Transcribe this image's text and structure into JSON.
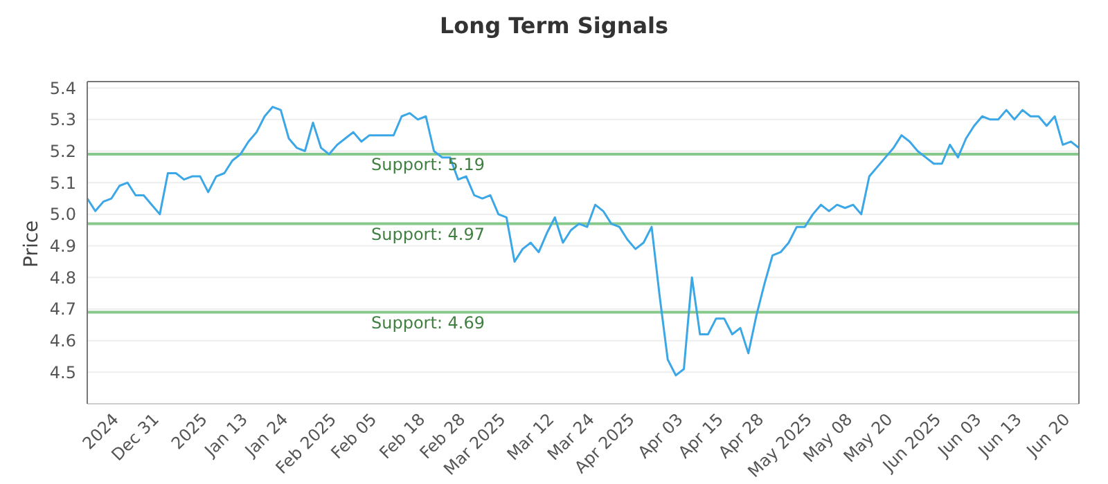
{
  "chart_data": {
    "type": "line",
    "title": "Long Term Signals",
    "ylabel": "Price",
    "categories": [
      null,
      null,
      null,
      null,
      "2024",
      null,
      null,
      null,
      null,
      "Dec 31",
      null,
      null,
      null,
      null,
      null,
      "2025",
      null,
      null,
      null,
      null,
      "Jan 13",
      null,
      null,
      null,
      null,
      "Jan 24",
      null,
      null,
      null,
      null,
      null,
      "Feb 2025",
      null,
      null,
      null,
      null,
      "Feb 05",
      null,
      null,
      null,
      null,
      null,
      "Feb 18",
      null,
      null,
      null,
      null,
      "Feb 28",
      null,
      null,
      null,
      null,
      "Mar 2025",
      null,
      null,
      null,
      null,
      null,
      "Mar 12",
      null,
      null,
      null,
      null,
      "Mar 24",
      null,
      null,
      null,
      null,
      "Apr 2025",
      null,
      null,
      null,
      null,
      null,
      "Apr 03",
      null,
      null,
      null,
      null,
      "Apr 15",
      null,
      null,
      null,
      null,
      "Apr 28",
      null,
      null,
      null,
      null,
      null,
      "May 2025",
      null,
      null,
      null,
      null,
      "May 08",
      null,
      null,
      null,
      null,
      "May 20",
      null,
      null,
      null,
      null,
      null,
      "Jun 2025",
      null,
      null,
      null,
      null,
      "Jun 03",
      null,
      null,
      null,
      null,
      "Jun 13",
      null,
      null,
      null,
      null,
      null,
      "Jun 20",
      null
    ],
    "series": [
      {
        "color": "#3ba7e6",
        "values": [
          5.05,
          5.01,
          5.04,
          5.05,
          5.09,
          5.1,
          5.06,
          5.06,
          5.03,
          5.0,
          5.13,
          5.13,
          5.11,
          5.12,
          5.12,
          5.07,
          5.12,
          5.13,
          5.17,
          5.19,
          5.23,
          5.26,
          5.31,
          5.34,
          5.33,
          5.24,
          5.21,
          5.2,
          5.29,
          5.21,
          5.19,
          5.22,
          5.24,
          5.26,
          5.23,
          5.25,
          5.25,
          5.25,
          5.25,
          5.31,
          5.32,
          5.3,
          5.31,
          5.2,
          5.18,
          5.18,
          5.11,
          5.12,
          5.06,
          5.05,
          5.06,
          5.0,
          4.99,
          4.85,
          4.89,
          4.91,
          4.88,
          4.94,
          4.99,
          4.91,
          4.95,
          4.97,
          4.96,
          5.03,
          5.01,
          4.97,
          4.96,
          4.92,
          4.89,
          4.91,
          4.96,
          4.74,
          4.54,
          4.49,
          4.51,
          4.8,
          4.62,
          4.62,
          4.67,
          4.67,
          4.62,
          4.64,
          4.56,
          4.68,
          4.78,
          4.87,
          4.88,
          4.91,
          4.96,
          4.96,
          5.0,
          5.03,
          5.01,
          5.03,
          5.02,
          5.03,
          5.0,
          5.12,
          5.15,
          5.18,
          5.21,
          5.25,
          5.23,
          5.2,
          5.18,
          5.16,
          5.16,
          5.22,
          5.18,
          5.24,
          5.28,
          5.31,
          5.3,
          5.3,
          5.33,
          5.3,
          5.33,
          5.31,
          5.31,
          5.28,
          5.31,
          5.22,
          5.23,
          5.21
        ]
      }
    ],
    "ylim": [
      4.4,
      5.42
    ],
    "yticks": [
      4.5,
      4.6,
      4.7,
      4.8,
      4.9,
      {
        "value": 5,
        "label": "5.0"
      },
      5.1,
      5.2,
      5.3,
      5.4
    ],
    "ref_lines": [
      {
        "axis": "y",
        "value": 5.19,
        "label": "Support: 5.19",
        "color": "#86c98a"
      },
      {
        "axis": "y",
        "value": 4.97,
        "label": "Support: 4.97",
        "color": "#86c98a"
      },
      {
        "axis": "y",
        "value": 4.69,
        "label": "Support: 4.69",
        "color": "#86c98a"
      }
    ],
    "grid": "y",
    "marker": "none",
    "line_style": "solid",
    "legend": false
  }
}
